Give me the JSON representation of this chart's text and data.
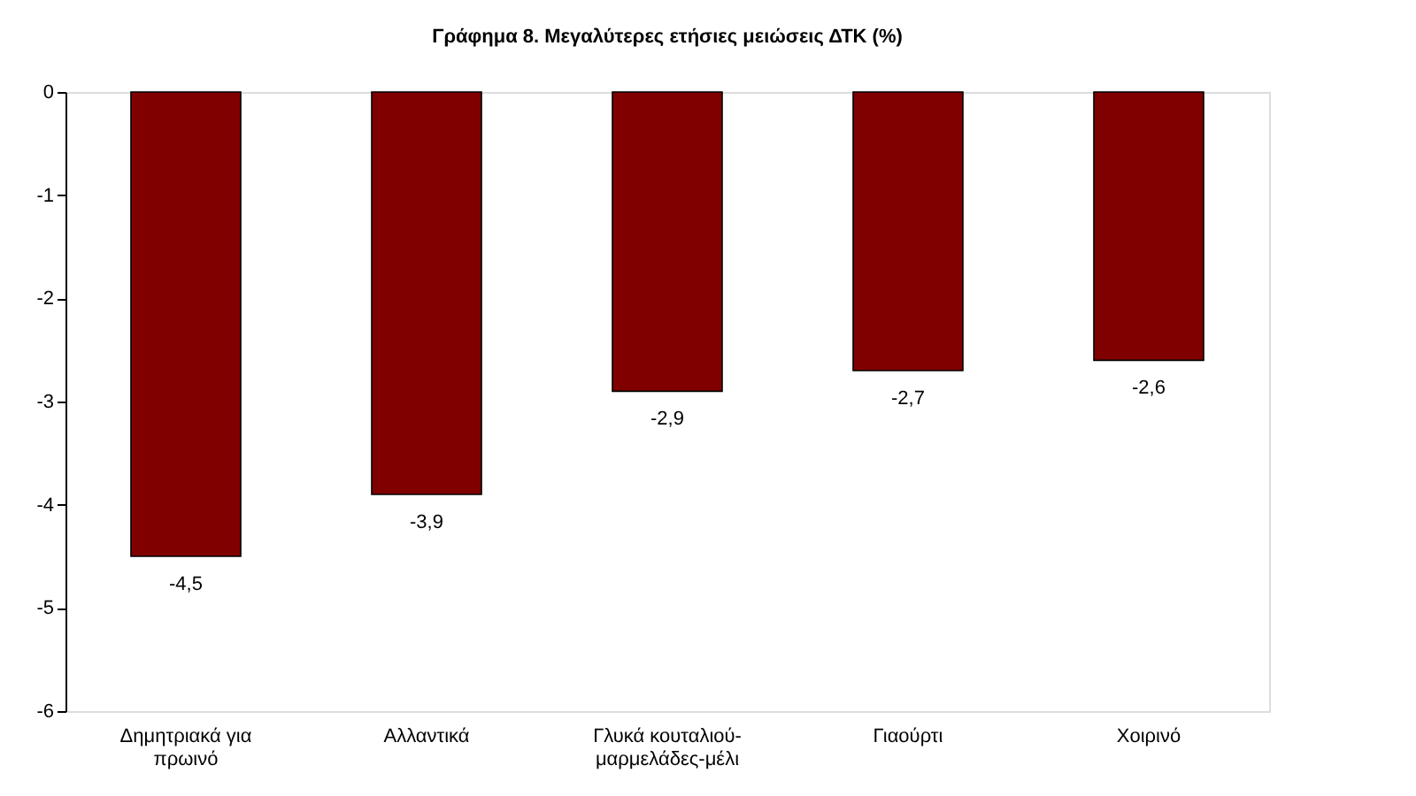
{
  "chart_data": {
    "type": "bar",
    "title": "Γράφημα 8. Μεγαλύτερες ετήσιες μειώσεις ΔΤΚ (%)",
    "categories": [
      "Δημητριακά για πρωινό",
      "Αλλαντικά",
      "Γλυκά κουταλιού-μαρμελάδες-μέλι",
      "Γιαούρτι",
      "Χοιρινό"
    ],
    "values": [
      -4.5,
      -3.9,
      -2.9,
      -2.7,
      -2.6
    ],
    "value_labels": [
      "-4,5",
      "-3,9",
      "-2,9",
      "-2,7",
      "-2,6"
    ],
    "color": "#800000",
    "ylim": [
      -6,
      0
    ],
    "yticks": [
      -6,
      -5,
      -4,
      -3,
      -2,
      -1,
      0
    ],
    "grid": false
  }
}
